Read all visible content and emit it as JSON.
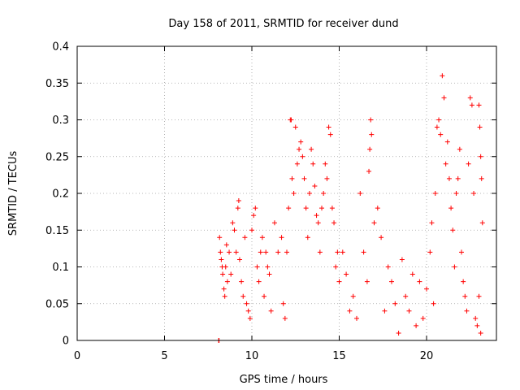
{
  "chart_data": {
    "type": "scatter",
    "title": "Day 158 of 2011, SRMTID for receiver dund",
    "xlabel": "GPS time / hours",
    "ylabel": "SRMTID / TECUs",
    "xlim": [
      0,
      24
    ],
    "ylim": [
      0,
      0.4
    ],
    "x_ticks": [
      "0",
      "5",
      "10",
      "15",
      "20"
    ],
    "y_ticks": [
      "0",
      "0.05",
      "0.1",
      "0.15",
      "0.2",
      "0.25",
      "0.3",
      "0.35",
      "0.4"
    ],
    "grid": true,
    "marker": "plus",
    "series": [
      {
        "color": "#ff0000",
        "points": [
          [
            8.1,
            0.0
          ],
          [
            8.12,
            0.0
          ],
          [
            8.15,
            0.14
          ],
          [
            8.2,
            0.12
          ],
          [
            8.25,
            0.11
          ],
          [
            8.3,
            0.1
          ],
          [
            8.33,
            0.09
          ],
          [
            8.4,
            0.07
          ],
          [
            8.45,
            0.06
          ],
          [
            8.5,
            0.1
          ],
          [
            8.55,
            0.13
          ],
          [
            8.6,
            0.08
          ],
          [
            8.7,
            0.12
          ],
          [
            8.8,
            0.09
          ],
          [
            8.9,
            0.16
          ],
          [
            9.0,
            0.15
          ],
          [
            9.1,
            0.12
          ],
          [
            9.2,
            0.18
          ],
          [
            9.25,
            0.19
          ],
          [
            9.3,
            0.11
          ],
          [
            9.4,
            0.08
          ],
          [
            9.5,
            0.06
          ],
          [
            9.6,
            0.14
          ],
          [
            9.7,
            0.05
          ],
          [
            9.8,
            0.04
          ],
          [
            9.9,
            0.03
          ],
          [
            10.0,
            0.15
          ],
          [
            10.1,
            0.17
          ],
          [
            10.2,
            0.18
          ],
          [
            10.3,
            0.1
          ],
          [
            10.4,
            0.08
          ],
          [
            10.5,
            0.12
          ],
          [
            10.6,
            0.14
          ],
          [
            10.7,
            0.06
          ],
          [
            10.8,
            0.12
          ],
          [
            10.9,
            0.1
          ],
          [
            11.0,
            0.09
          ],
          [
            11.1,
            0.04
          ],
          [
            11.3,
            0.16
          ],
          [
            11.5,
            0.12
          ],
          [
            11.7,
            0.14
          ],
          [
            11.8,
            0.05
          ],
          [
            11.9,
            0.03
          ],
          [
            12.0,
            0.12
          ],
          [
            12.1,
            0.18
          ],
          [
            12.2,
            0.3
          ],
          [
            12.25,
            0.3
          ],
          [
            12.3,
            0.22
          ],
          [
            12.4,
            0.2
          ],
          [
            12.5,
            0.29
          ],
          [
            12.6,
            0.24
          ],
          [
            12.7,
            0.26
          ],
          [
            12.8,
            0.27
          ],
          [
            12.9,
            0.25
          ],
          [
            13.0,
            0.22
          ],
          [
            13.1,
            0.18
          ],
          [
            13.2,
            0.14
          ],
          [
            13.3,
            0.2
          ],
          [
            13.4,
            0.26
          ],
          [
            13.5,
            0.24
          ],
          [
            13.6,
            0.21
          ],
          [
            13.7,
            0.17
          ],
          [
            13.8,
            0.16
          ],
          [
            13.9,
            0.12
          ],
          [
            14.0,
            0.18
          ],
          [
            14.1,
            0.2
          ],
          [
            14.2,
            0.24
          ],
          [
            14.3,
            0.22
          ],
          [
            14.4,
            0.29
          ],
          [
            14.5,
            0.28
          ],
          [
            14.6,
            0.18
          ],
          [
            14.7,
            0.16
          ],
          [
            14.8,
            0.1
          ],
          [
            14.9,
            0.12
          ],
          [
            15.0,
            0.08
          ],
          [
            15.2,
            0.12
          ],
          [
            15.4,
            0.09
          ],
          [
            15.6,
            0.04
          ],
          [
            15.8,
            0.06
          ],
          [
            16.0,
            0.03
          ],
          [
            16.2,
            0.2
          ],
          [
            16.4,
            0.12
          ],
          [
            16.6,
            0.08
          ],
          [
            16.7,
            0.23
          ],
          [
            16.75,
            0.26
          ],
          [
            16.8,
            0.3
          ],
          [
            16.85,
            0.28
          ],
          [
            17.0,
            0.16
          ],
          [
            17.2,
            0.18
          ],
          [
            17.4,
            0.14
          ],
          [
            17.6,
            0.04
          ],
          [
            17.8,
            0.1
          ],
          [
            18.0,
            0.08
          ],
          [
            18.2,
            0.05
          ],
          [
            18.4,
            0.01
          ],
          [
            18.6,
            0.11
          ],
          [
            18.8,
            0.06
          ],
          [
            19.0,
            0.04
          ],
          [
            19.2,
            0.09
          ],
          [
            19.4,
            0.02
          ],
          [
            19.6,
            0.08
          ],
          [
            19.8,
            0.03
          ],
          [
            20.0,
            0.07
          ],
          [
            20.2,
            0.12
          ],
          [
            20.3,
            0.16
          ],
          [
            20.4,
            0.05
          ],
          [
            20.5,
            0.2
          ],
          [
            20.6,
            0.29
          ],
          [
            20.7,
            0.3
          ],
          [
            20.8,
            0.28
          ],
          [
            20.9,
            0.36
          ],
          [
            21.0,
            0.33
          ],
          [
            21.1,
            0.24
          ],
          [
            21.2,
            0.27
          ],
          [
            21.3,
            0.22
          ],
          [
            21.4,
            0.18
          ],
          [
            21.5,
            0.15
          ],
          [
            21.6,
            0.1
          ],
          [
            21.7,
            0.2
          ],
          [
            21.8,
            0.22
          ],
          [
            21.9,
            0.26
          ],
          [
            22.0,
            0.12
          ],
          [
            22.1,
            0.08
          ],
          [
            22.2,
            0.06
          ],
          [
            22.3,
            0.04
          ],
          [
            22.4,
            0.24
          ],
          [
            22.5,
            0.33
          ],
          [
            22.6,
            0.32
          ],
          [
            22.7,
            0.2
          ],
          [
            22.8,
            0.03
          ],
          [
            22.9,
            0.02
          ],
          [
            23.0,
            0.32
          ],
          [
            23.05,
            0.29
          ],
          [
            23.1,
            0.25
          ],
          [
            23.15,
            0.22
          ],
          [
            23.2,
            0.16
          ],
          [
            23.0,
            0.06
          ],
          [
            23.1,
            0.01
          ]
        ]
      }
    ]
  }
}
